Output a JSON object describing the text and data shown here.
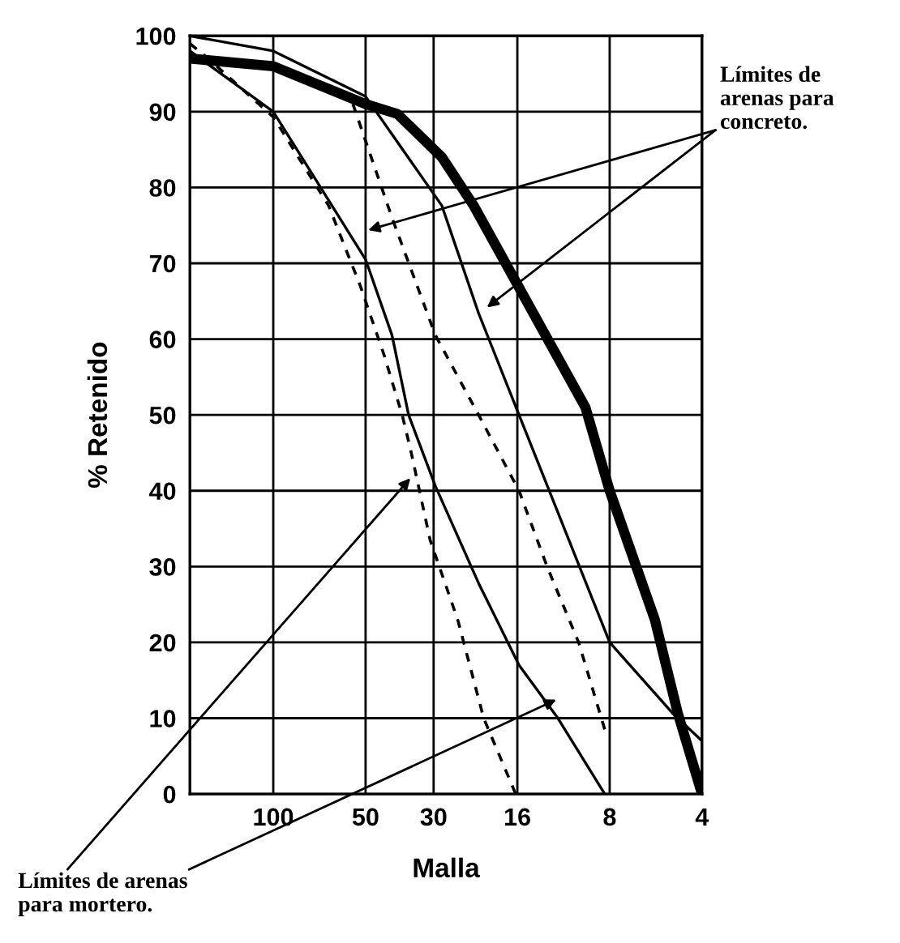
{
  "chart_data": {
    "type": "line",
    "xlabel": "Malla",
    "ylabel": "% Retenido",
    "log": "x",
    "xlim": [
      187,
      4
    ],
    "xticks": [
      100,
      50,
      30,
      16,
      8,
      4
    ],
    "ylim": [
      0,
      100
    ],
    "yticks": [
      0,
      10,
      20,
      30,
      40,
      50,
      60,
      70,
      80,
      90,
      100
    ],
    "grid": true,
    "marker": "none",
    "series": [
      {
        "color": "#000000",
        "line_style": "solid",
        "x": [
          187,
          100,
          50,
          39.4,
          28.2,
          22.2,
          15.4,
          9.6,
          8,
          5.7,
          4.8,
          4
        ],
        "values": [
          97,
          96,
          91,
          89.7,
          84,
          77.6,
          66,
          51,
          40,
          23,
          10.7,
          0
        ]
      },
      {
        "color": "#000000",
        "line_style": "solid",
        "x": [
          187,
          100,
          50,
          28.2,
          21.4,
          15.8,
          8,
          5,
          4
        ],
        "values": [
          100,
          98,
          92,
          77.6,
          63.4,
          50,
          20,
          10.7,
          7
        ]
      },
      {
        "color": "#000000",
        "line_style": "dashed",
        "x": [
          55,
          41,
          29.6,
          21.4,
          15.8,
          12.8,
          10.1,
          8.3
        ],
        "values": [
          91,
          76,
          60.5,
          50,
          40,
          30,
          20,
          8.5
        ]
      },
      {
        "color": "#000000",
        "line_style": "solid",
        "x": [
          187,
          100,
          50,
          41,
          36.2,
          29.6,
          21.4,
          15.8,
          11.8,
          8.3
        ],
        "values": [
          98,
          90,
          70.5,
          60.5,
          50,
          40.6,
          27.8,
          17,
          10,
          0
        ]
      },
      {
        "color": "#000000",
        "line_style": "dashed",
        "x": [
          187,
          161,
          100,
          66,
          52,
          43.6,
          38,
          35.7,
          30.8,
          25,
          20.6,
          16.2
        ],
        "values": [
          99,
          96.8,
          89.3,
          77.6,
          67,
          58,
          50,
          45.5,
          33.5,
          22.9,
          10,
          0
        ]
      }
    ],
    "annotations": [
      "Límites de\narenas para\nconcreto.",
      "Límites de arenas\npara mortero."
    ]
  }
}
